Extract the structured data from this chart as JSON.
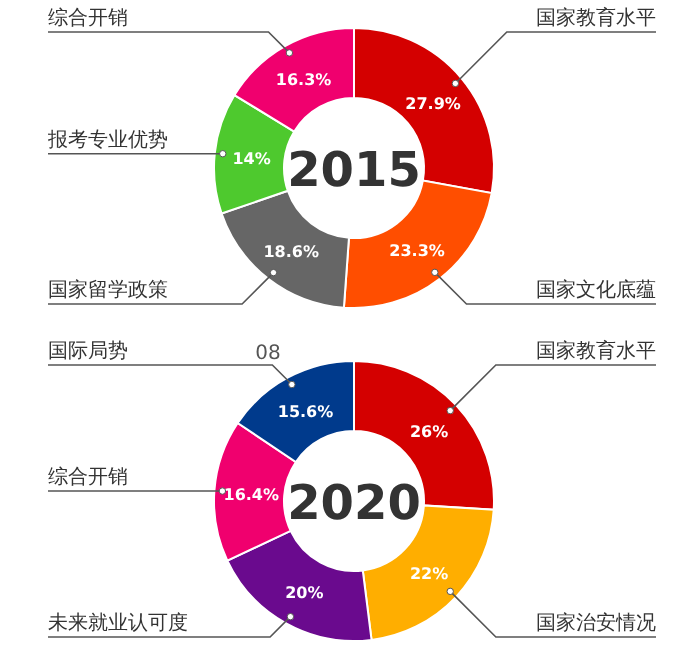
{
  "chart_data": [
    {
      "type": "donut",
      "title": "2015",
      "categories": [
        "国家教育水平",
        "国家文化底蕴",
        "国家留学政策",
        "报考专业优势",
        "综合开销"
      ],
      "values": [
        27.9,
        23.3,
        18.6,
        14,
        16.3
      ],
      "value_labels": [
        "27.9%",
        "23.3%",
        "18.6%",
        "14%",
        "16.3%"
      ],
      "colors": [
        "#d40000",
        "#ff4e00",
        "#666666",
        "#4ec92e",
        "#f0006e"
      ]
    },
    {
      "type": "donut",
      "title": "2020",
      "categories": [
        "国家教育水平",
        "国家治安情况",
        "未来就业认可度",
        "综合开销",
        "国际局势"
      ],
      "values": [
        26,
        22,
        20,
        16.4,
        15.6
      ],
      "value_labels": [
        "26%",
        "22%",
        "20%",
        "16.4%",
        "15.6%"
      ],
      "colors": [
        "#d40000",
        "#ffae00",
        "#6a0a8e",
        "#f0006e",
        "#003a8c"
      ],
      "annotations": [
        "08"
      ]
    }
  ]
}
